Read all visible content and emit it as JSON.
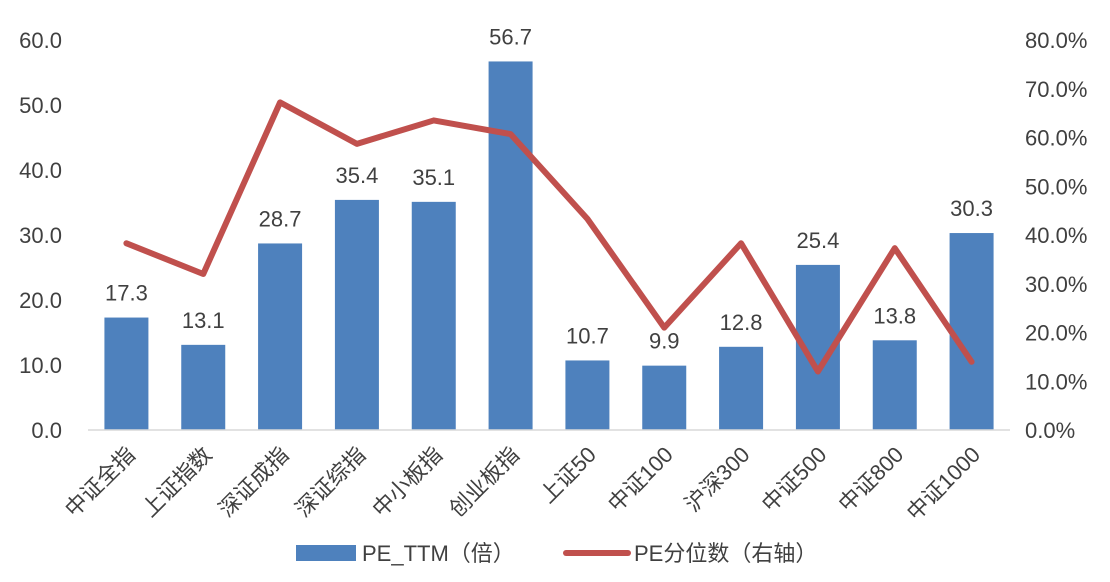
{
  "chart_data": {
    "type": "bar",
    "categories": [
      "中证全指",
      "上证指数",
      "深证成指",
      "深证综指",
      "中小板指",
      "创业板指",
      "上证50",
      "中证100",
      "沪深300",
      "中证500",
      "中证800",
      "中证1000"
    ],
    "series": [
      {
        "name": "PE_TTM（倍）",
        "type": "bar",
        "axis": "left",
        "color": "#4e81bd",
        "values": [
          17.3,
          13.1,
          28.7,
          35.4,
          35.1,
          56.7,
          10.7,
          9.9,
          12.8,
          25.4,
          13.8,
          30.3
        ],
        "value_labels": [
          "17.3",
          "13.1",
          "28.7",
          "35.4",
          "35.1",
          "56.7",
          "10.7",
          "9.9",
          "12.8",
          "25.4",
          "13.8",
          "30.3"
        ]
      },
      {
        "name": "PE分位数（右轴）",
        "type": "line",
        "axis": "right",
        "color": "#c0504d",
        "values": [
          0.383,
          0.32,
          0.672,
          0.587,
          0.635,
          0.607,
          0.433,
          0.21,
          0.383,
          0.12,
          0.373,
          0.14
        ]
      }
    ],
    "y_left": {
      "ylim": [
        0,
        60
      ],
      "ticks": [
        0,
        10,
        20,
        30,
        40,
        50,
        60
      ],
      "tick_labels": [
        "0.0",
        "10.0",
        "20.0",
        "30.0",
        "40.0",
        "50.0",
        "60.0"
      ]
    },
    "y_right": {
      "ylim": [
        0,
        0.8
      ],
      "ticks": [
        0,
        0.1,
        0.2,
        0.3,
        0.4,
        0.5,
        0.6,
        0.7,
        0.8
      ],
      "tick_labels": [
        "0.0%",
        "10.0%",
        "20.0%",
        "30.0%",
        "40.0%",
        "50.0%",
        "60.0%",
        "70.0%",
        "80.0%"
      ]
    },
    "grid": false,
    "legend_position": "bottom"
  }
}
